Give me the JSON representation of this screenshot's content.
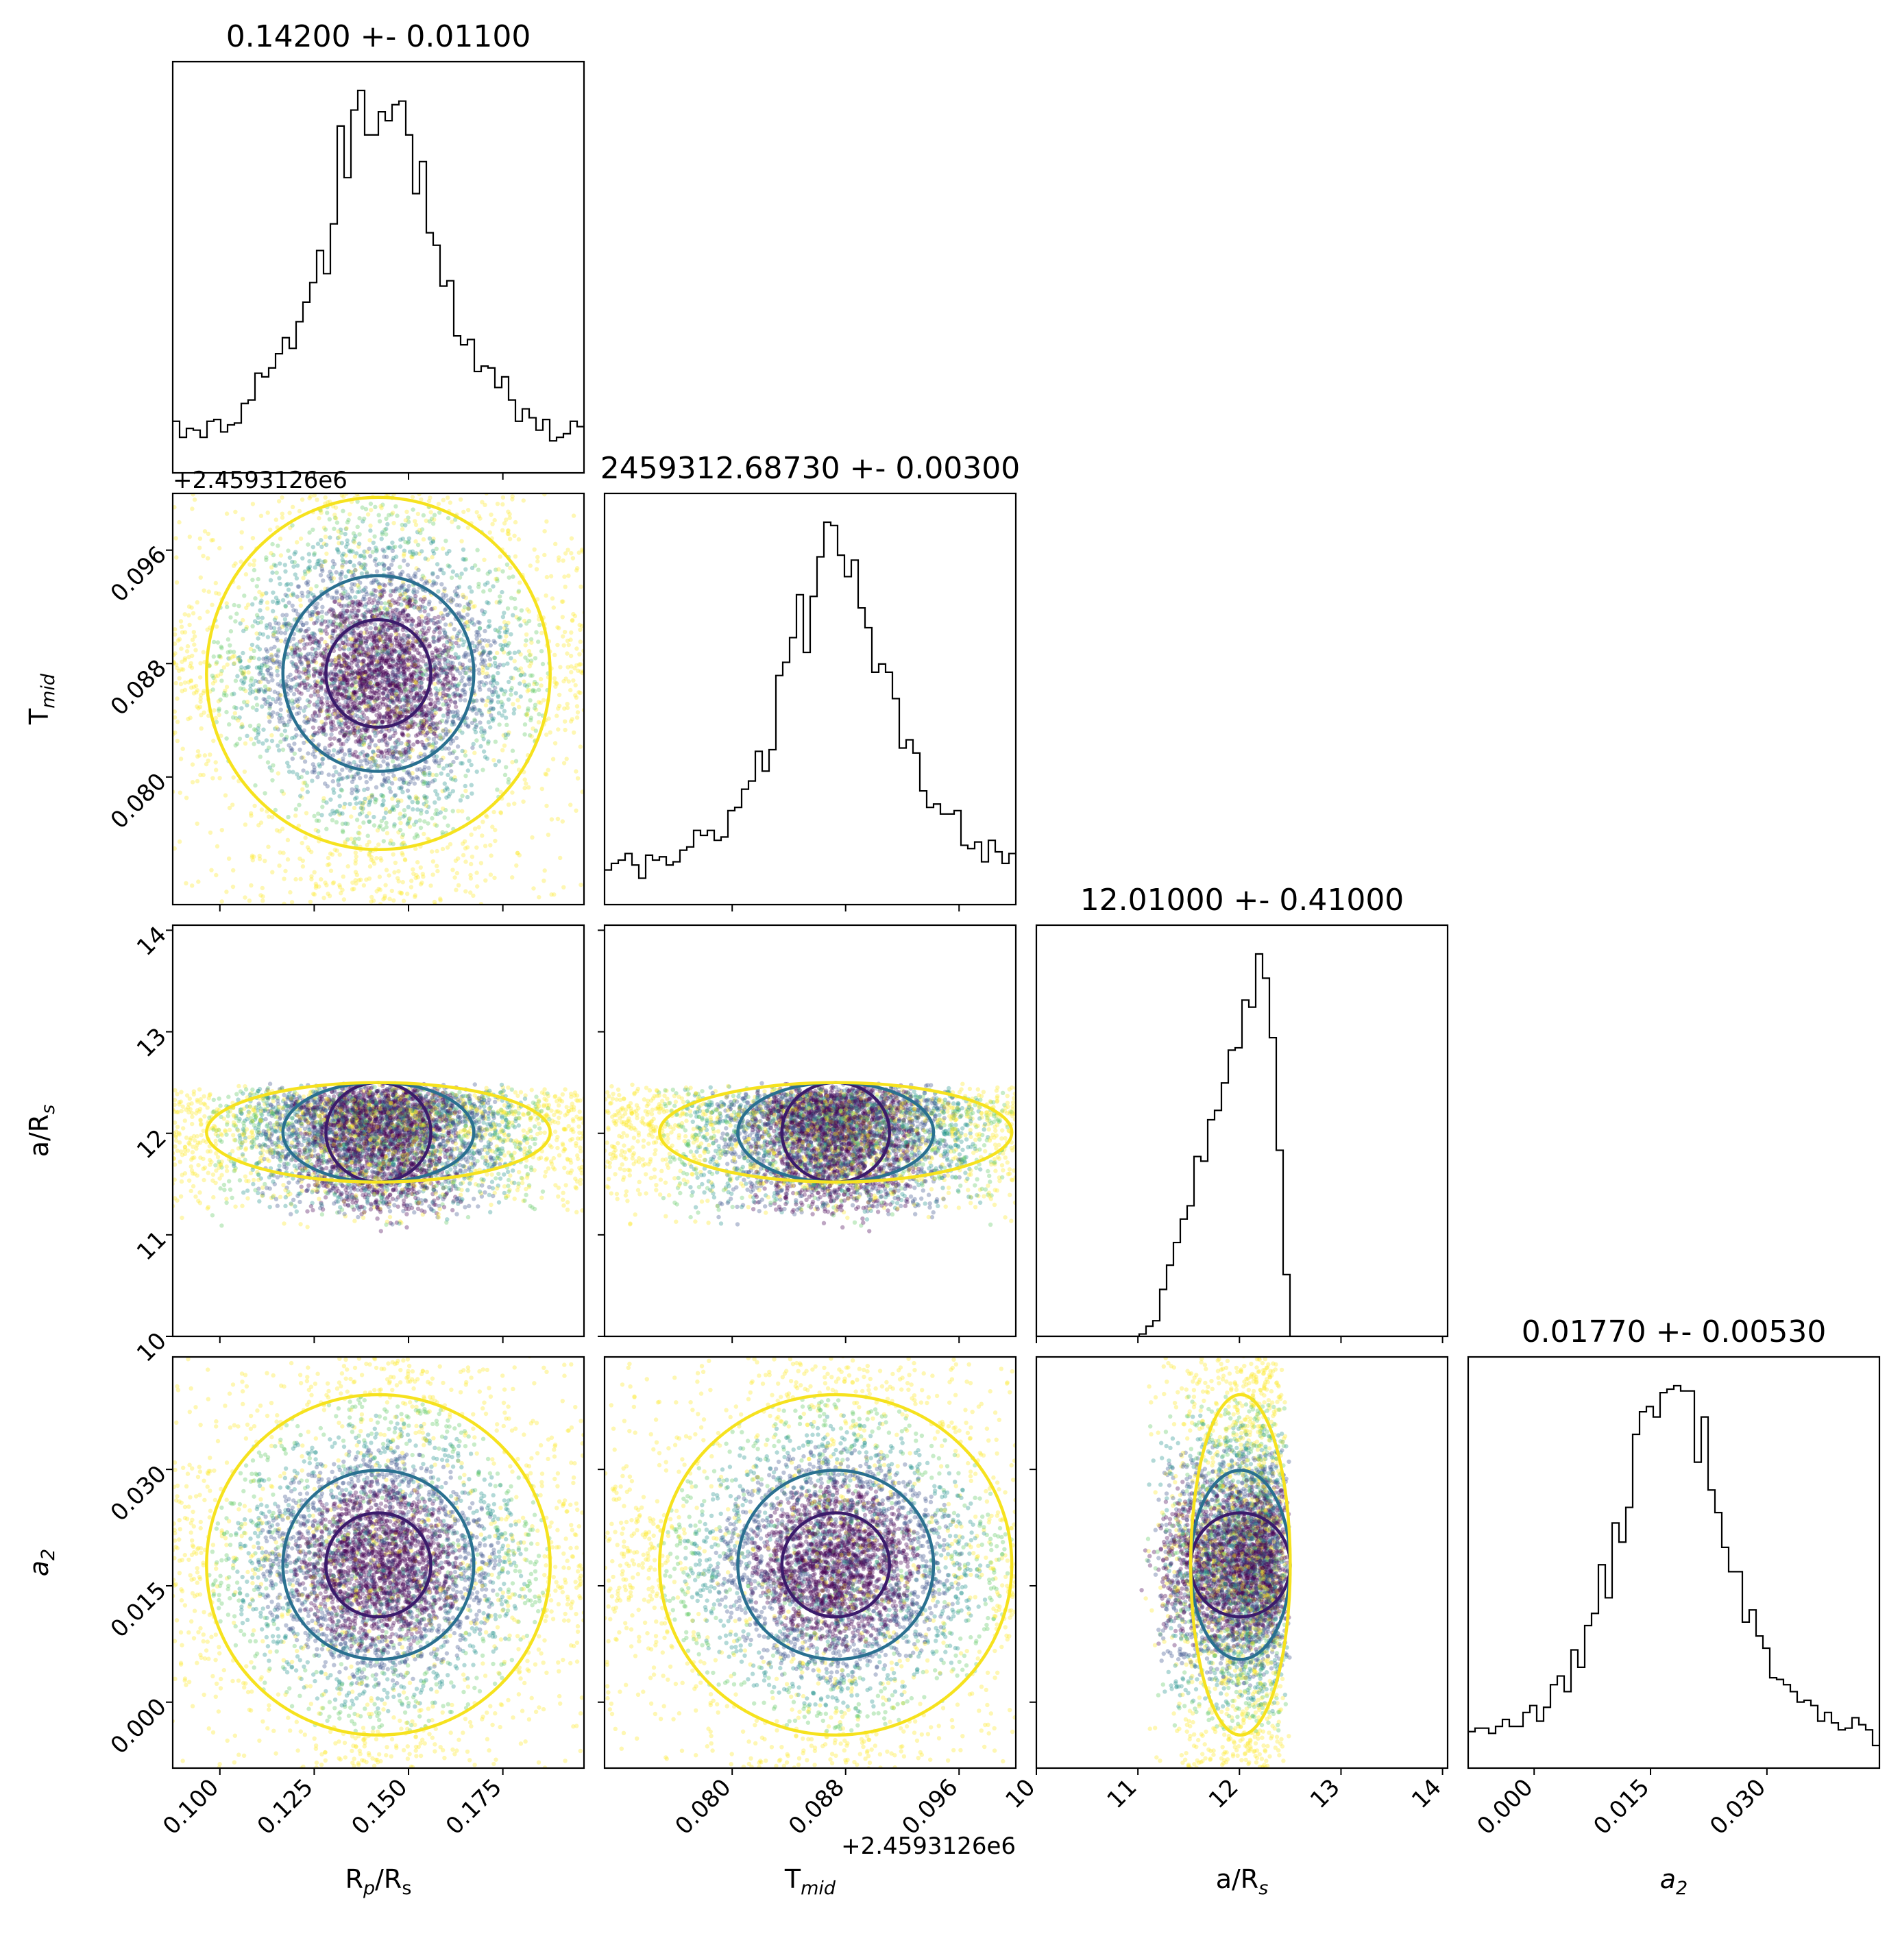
{
  "chart_data": {
    "type": "scatter",
    "subtype": "corner-plot",
    "params": [
      {
        "key": "rprs",
        "label_main": "R",
        "label_sub": "p",
        "label_tail": "/R",
        "label_sub2": "s",
        "title": "0.14200 +- 0.01100",
        "median": 0.142,
        "sigma": 0.011,
        "range": [
          0.0875,
          0.1965
        ],
        "ticks": [
          "0.100",
          "0.125",
          "0.150",
          "0.175"
        ],
        "tick_values": [
          0.1,
          0.125,
          0.15,
          0.175
        ],
        "offset": ""
      },
      {
        "key": "tmid",
        "label_main": "T",
        "label_sub": "mid",
        "label_tail": "",
        "label_sub2": "",
        "title": "2459312.68730 +- 0.00300",
        "median": 0.0873,
        "sigma": 0.003,
        "range": [
          0.071,
          0.1
        ],
        "ticks": [
          "0.080",
          "0.088",
          "0.096"
        ],
        "tick_values": [
          0.08,
          0.088,
          0.096
        ],
        "offset": "+2.4593126e6"
      },
      {
        "key": "ars",
        "label_main": "a/R",
        "label_sub": "s",
        "label_tail": "",
        "label_sub2": "",
        "title": "12.01000 +- 0.41000",
        "median": 12.01,
        "sigma": 0.41,
        "range": [
          10.0,
          14.05
        ],
        "ticks": [
          "10",
          "11",
          "12",
          "13",
          "14"
        ],
        "tick_values": [
          10,
          11,
          12,
          13,
          14
        ],
        "offset": "",
        "bounded": [
          11.0,
          12.5
        ]
      },
      {
        "key": "a2",
        "label_main": "a",
        "label_sub": "2",
        "label_tail": "",
        "label_sub2": "",
        "italic": true,
        "title": "0.01770 +- 0.00530",
        "median": 0.0177,
        "sigma": 0.0053,
        "range": [
          -0.0085,
          0.0445
        ],
        "ticks": [
          "0.000",
          "0.015",
          "0.030"
        ],
        "tick_values": [
          0.0,
          0.015,
          0.03
        ],
        "offset": ""
      }
    ],
    "contour_colors": [
      "#3b1b6b",
      "#2a7090",
      "#f6e21e"
    ],
    "scatter_colormap": [
      "#440154",
      "#3b528b",
      "#21918c",
      "#5ec962",
      "#fde725"
    ]
  }
}
